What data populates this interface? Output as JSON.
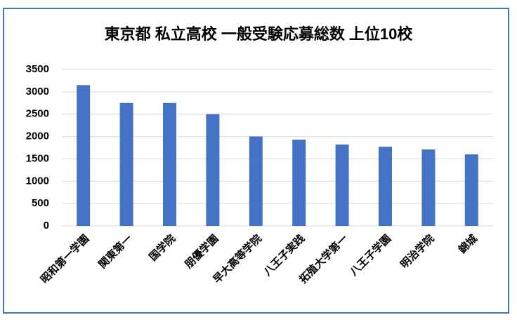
{
  "chart_data": {
    "type": "bar",
    "title": "東京都 私立高校 一般受験応募総数 上位10校",
    "categories": [
      "昭和第一学園",
      "関東第一",
      "国学院",
      "朋優学園",
      "早大高等学院",
      "八王子実践",
      "拓殖大学第一",
      "八王子学園",
      "明治学院",
      "錦城"
    ],
    "values": [
      3150,
      2750,
      2750,
      2500,
      2000,
      1930,
      1820,
      1770,
      1710,
      1600
    ],
    "color": "#4472c4",
    "ylim": [
      0,
      3500
    ],
    "yticks": [
      0,
      500,
      1000,
      1500,
      2000,
      2500,
      3000,
      3500
    ],
    "grid": true
  }
}
